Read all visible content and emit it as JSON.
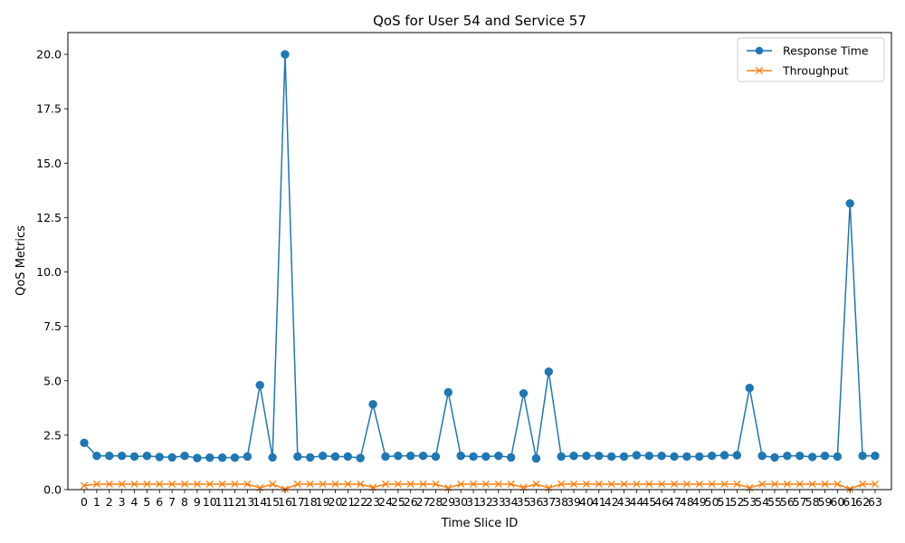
{
  "chart_data": {
    "type": "line",
    "title": "QoS for User 54 and Service 57",
    "xlabel": "Time Slice ID",
    "ylabel": "QoS Metrics",
    "x": [
      0,
      1,
      2,
      3,
      4,
      5,
      6,
      7,
      8,
      9,
      10,
      11,
      12,
      13,
      14,
      15,
      16,
      17,
      18,
      19,
      20,
      21,
      22,
      23,
      24,
      25,
      26,
      27,
      28,
      29,
      30,
      31,
      32,
      33,
      34,
      35,
      36,
      37,
      38,
      39,
      40,
      41,
      42,
      43,
      44,
      45,
      46,
      47,
      48,
      49,
      50,
      51,
      52,
      53,
      54,
      55,
      56,
      57,
      58,
      59,
      60,
      61,
      62,
      63
    ],
    "xtick_labels": [
      "0",
      "1",
      "2",
      "3",
      "4",
      "5",
      "6",
      "7",
      "8",
      "9",
      "10",
      "11",
      "12",
      "13",
      "14",
      "15",
      "16",
      "17",
      "18",
      "19",
      "20",
      "21",
      "22",
      "23",
      "24",
      "25",
      "26",
      "27",
      "28",
      "29",
      "30",
      "31",
      "32",
      "33",
      "34",
      "35",
      "36",
      "37",
      "38",
      "39",
      "40",
      "41",
      "42",
      "43",
      "44",
      "45",
      "46",
      "47",
      "48",
      "49",
      "50",
      "51",
      "52",
      "53",
      "54",
      "55",
      "56",
      "57",
      "58",
      "59",
      "60",
      "61",
      "62",
      "63"
    ],
    "ylim": [
      0,
      21
    ],
    "yticks": [
      0.0,
      2.5,
      5.0,
      7.5,
      10.0,
      12.5,
      15.0,
      17.5,
      20.0
    ],
    "ytick_labels": [
      "0.0",
      "2.5",
      "5.0",
      "7.5",
      "10.0",
      "12.5",
      "15.0",
      "17.5",
      "20.0"
    ],
    "grid": false,
    "legend_position": "top-right",
    "series": [
      {
        "name": "Response Time",
        "marker": "circle",
        "color": "#1f77b4",
        "values": [
          2.15,
          1.55,
          1.55,
          1.55,
          1.52,
          1.55,
          1.5,
          1.48,
          1.55,
          1.45,
          1.47,
          1.47,
          1.47,
          1.52,
          4.8,
          1.48,
          20.0,
          1.52,
          1.48,
          1.55,
          1.52,
          1.52,
          1.45,
          3.92,
          1.52,
          1.55,
          1.55,
          1.55,
          1.52,
          4.47,
          1.55,
          1.52,
          1.52,
          1.55,
          1.48,
          4.42,
          1.43,
          5.42,
          1.52,
          1.55,
          1.55,
          1.55,
          1.52,
          1.52,
          1.58,
          1.55,
          1.55,
          1.52,
          1.52,
          1.52,
          1.55,
          1.58,
          1.58,
          4.67,
          1.55,
          1.48,
          1.55,
          1.55,
          1.5,
          1.55,
          1.52,
          13.15,
          1.55,
          1.55
        ]
      },
      {
        "name": "Throughput",
        "marker": "x",
        "color": "#ff7f0e",
        "values": [
          0.18,
          0.25,
          0.25,
          0.25,
          0.25,
          0.25,
          0.25,
          0.25,
          0.25,
          0.25,
          0.25,
          0.25,
          0.25,
          0.25,
          0.08,
          0.25,
          0.02,
          0.25,
          0.25,
          0.25,
          0.25,
          0.25,
          0.25,
          0.1,
          0.25,
          0.25,
          0.25,
          0.25,
          0.25,
          0.08,
          0.25,
          0.25,
          0.25,
          0.25,
          0.25,
          0.1,
          0.25,
          0.08,
          0.25,
          0.25,
          0.25,
          0.25,
          0.25,
          0.25,
          0.25,
          0.25,
          0.25,
          0.25,
          0.25,
          0.25,
          0.25,
          0.25,
          0.25,
          0.08,
          0.25,
          0.25,
          0.25,
          0.25,
          0.25,
          0.25,
          0.25,
          0.03,
          0.25,
          0.25
        ]
      }
    ]
  }
}
